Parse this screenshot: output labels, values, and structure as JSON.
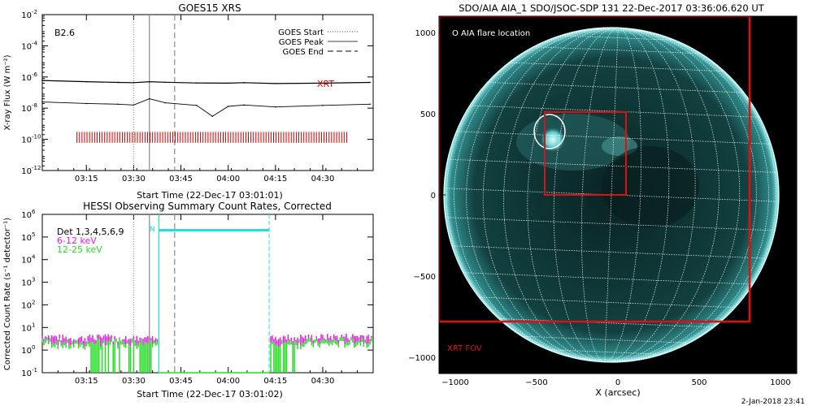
{
  "goes": {
    "title": "GOES15 XRS",
    "ylabel": "X-ray Flux (W m⁻²)",
    "xlabel": "Start Time (22-Dec-17 03:01:01)",
    "class_label": "B2.6",
    "legend": [
      "GOES Start",
      "GOES Peak",
      "GOES End"
    ],
    "xrt_label": "XRT",
    "y_tick_exponents": [
      "-2",
      "-4",
      "-6",
      "-8",
      "-10",
      "-12"
    ],
    "x_ticks": [
      "03:15",
      "03:30",
      "03:45",
      "04:00",
      "04:15",
      "04:30"
    ],
    "colors": {
      "xrt": "#cc0000"
    }
  },
  "hessi": {
    "title": "HESSI Observing Summary Count Rates, Corrected",
    "ylabel": "Corrected Count Rate (s⁻¹ detector⁻¹)",
    "xlabel": "Start Time (22-Dec-17 03:01:02)",
    "legend": [
      {
        "text": "Det 1,3,4,5,6,9",
        "color": "#000000"
      },
      {
        "text": "6-12 keV",
        "color": "#dd22dd"
      },
      {
        "text": "12-25 keV",
        "color": "#22dd22"
      }
    ],
    "n_label": "N",
    "y_tick_exponents": [
      "6",
      "5",
      "4",
      "3",
      "2",
      "1",
      "0",
      "-1"
    ],
    "x_ticks": [
      "03:15",
      "03:30",
      "03:45",
      "04:00",
      "04:15",
      "04:30"
    ],
    "colors": {
      "night": "#22dddd",
      "low": "#dd22dd",
      "high": "#22dd22"
    }
  },
  "aia": {
    "title": "SDO/AIA AIA_1 SDO/JSOC-SDP 131 22-Dec-2017 03:36:06.620 UT",
    "legend": "O AIA flare location",
    "fov_label": "XRT FOV",
    "xlabel": "X (arcsec)",
    "x_ticks": [
      "−1000",
      "−500",
      "0",
      "500",
      "1000"
    ],
    "y_ticks": [
      "1000",
      "500",
      "0",
      "−500",
      "−1000"
    ],
    "colors": {
      "fov": "#dd1111"
    }
  },
  "footer": "2-Jan-2018 23:41",
  "chart_data": [
    {
      "type": "line",
      "title": "GOES15 XRS",
      "xlabel": "Start Time (22-Dec-17 03:01:01)",
      "ylabel": "X-ray Flux (W m-2)",
      "y_scale": "log",
      "ylim": [
        1e-12,
        0.01
      ],
      "xlim": [
        "03:01",
        "04:46"
      ],
      "series": [
        {
          "name": "",
          "x": [
            "03:01",
            "03:15",
            "03:25",
            "03:30",
            "03:35",
            "03:40",
            "03:50",
            "04:00",
            "04:05",
            "04:15",
            "04:30",
            "04:45"
          ],
          "y": [
            6e-07,
            5e-07,
            4.5e-07,
            4.3e-07,
            5e-07,
            4.6e-07,
            4.1e-07,
            4e-07,
            4.3e-07,
            3.8e-07,
            4e-07,
            4.5e-07
          ]
        },
        {
          "name": "",
          "x": [
            "03:01",
            "03:15",
            "03:25",
            "03:30",
            "03:35",
            "03:40",
            "03:50",
            "03:55",
            "04:00",
            "04:05",
            "04:15",
            "04:30",
            "04:45"
          ],
          "y": [
            2.5e-08,
            2e-08,
            1.8e-08,
            1.6e-08,
            4e-08,
            2.2e-08,
            1.5e-08,
            3e-09,
            1.3e-08,
            1.6e-08,
            1.2e-08,
            1.5e-08,
            1.8e-08
          ]
        }
      ],
      "markers": {
        "goes_start": "03:30",
        "goes_peak": "03:35",
        "goes_end": "03:43"
      },
      "xrt_coverage": [
        "03:12",
        "04:38"
      ],
      "legend_position": "top-right"
    },
    {
      "type": "line",
      "title": "HESSI Observing Summary Count Rates, Corrected",
      "xlabel": "Start Time (22-Dec-17 03:01:02)",
      "ylabel": "Corrected Count Rate (s-1 detector-1)",
      "y_scale": "log",
      "ylim": [
        0.1,
        1000000.0
      ],
      "xlim": [
        "03:01",
        "04:46"
      ],
      "series": [
        {
          "name": "6-12 keV",
          "x": [
            "03:01",
            "03:10",
            "03:20",
            "03:30",
            "03:36",
            "04:12",
            "04:20",
            "04:30",
            "04:45"
          ],
          "y": [
            4,
            3,
            3.5,
            3,
            3,
            3,
            3.5,
            3.5,
            4
          ]
        },
        {
          "name": "12-25 keV",
          "x": [
            "03:01",
            "03:10",
            "03:20",
            "03:30",
            "03:36",
            "04:12",
            "04:20",
            "04:30",
            "04:45"
          ],
          "y": [
            3,
            2,
            2.5,
            2.5,
            2,
            2,
            2.5,
            2.5,
            3
          ]
        }
      ],
      "night_interval": [
        "03:38",
        "04:13"
      ],
      "legend_position": "top-left"
    },
    {
      "type": "heatmap",
      "title": "SDO/AIA AIA_1 SDO/JSOC-SDP 131 22-Dec-2017 03:36:06.620 UT",
      "xlabel": "X (arcsec)",
      "xlim": [
        -1100,
        1100
      ],
      "ylim": [
        -1100,
        1100
      ],
      "flare_location": [
        -420,
        390
      ],
      "boxes": [
        {
          "label": "",
          "x": [
            -450,
            50
          ],
          "y": [
            0,
            510
          ]
        },
        {
          "label": "XRT FOV",
          "x": [
            -1100,
            810
          ],
          "y": [
            -780,
            1100
          ]
        }
      ]
    }
  ]
}
